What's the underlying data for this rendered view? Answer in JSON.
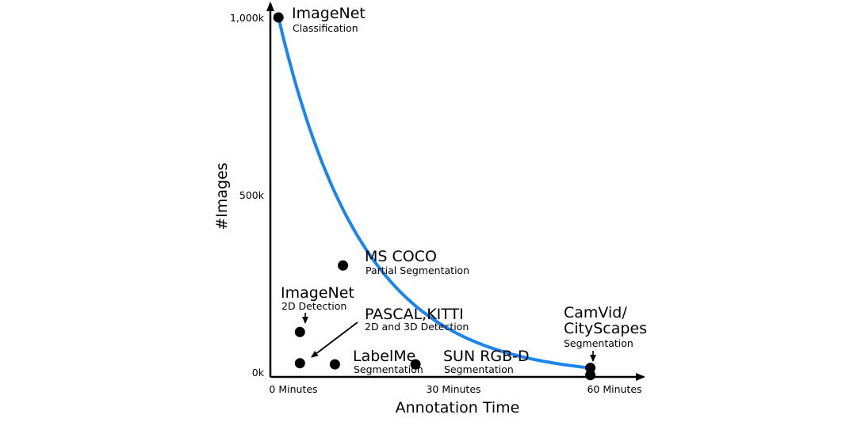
{
  "chart_data": {
    "type": "scatter",
    "xlabel": "Annotation Time",
    "ylabel": "#Images",
    "xlim": [
      0,
      60
    ],
    "ylim": [
      0,
      1000
    ],
    "x_ticks": [
      {
        "value": 0,
        "label": "0 Minutes"
      },
      {
        "value": 30,
        "label": "30 Minutes"
      },
      {
        "value": 60,
        "label": "60 Minutes"
      }
    ],
    "y_ticks": [
      {
        "value": 0,
        "label": "0k"
      },
      {
        "value": 500,
        "label": "500k"
      },
      {
        "value": 1000,
        "label": "1,000k"
      }
    ],
    "curve_color": "#1a85ee",
    "points": [
      {
        "name": "ImageNet",
        "sub": "Classification",
        "x": 1.5,
        "y": 1000
      },
      {
        "name": "MS COCO",
        "sub": "Partial Segmentation",
        "x": 13.5,
        "y": 310
      },
      {
        "name": "ImageNet",
        "sub": "2D Detection",
        "x": 5.5,
        "y": 125
      },
      {
        "name": "PASCAL,KITTI",
        "sub": "2D and 3D Detection",
        "x": 5.5,
        "y": 38
      },
      {
        "name": "LabelMe",
        "sub": "Segmentation",
        "x": 12,
        "y": 35
      },
      {
        "name": "SUN RGB-D",
        "sub": "Segmentation",
        "x": 27,
        "y": 35
      },
      {
        "name": "CamVid/",
        "name2": "CityScapes",
        "sub": "Segmentation",
        "x": 59.5,
        "y": 25
      },
      {
        "name": "",
        "sub": "",
        "x": 59.5,
        "y": 5
      }
    ]
  }
}
